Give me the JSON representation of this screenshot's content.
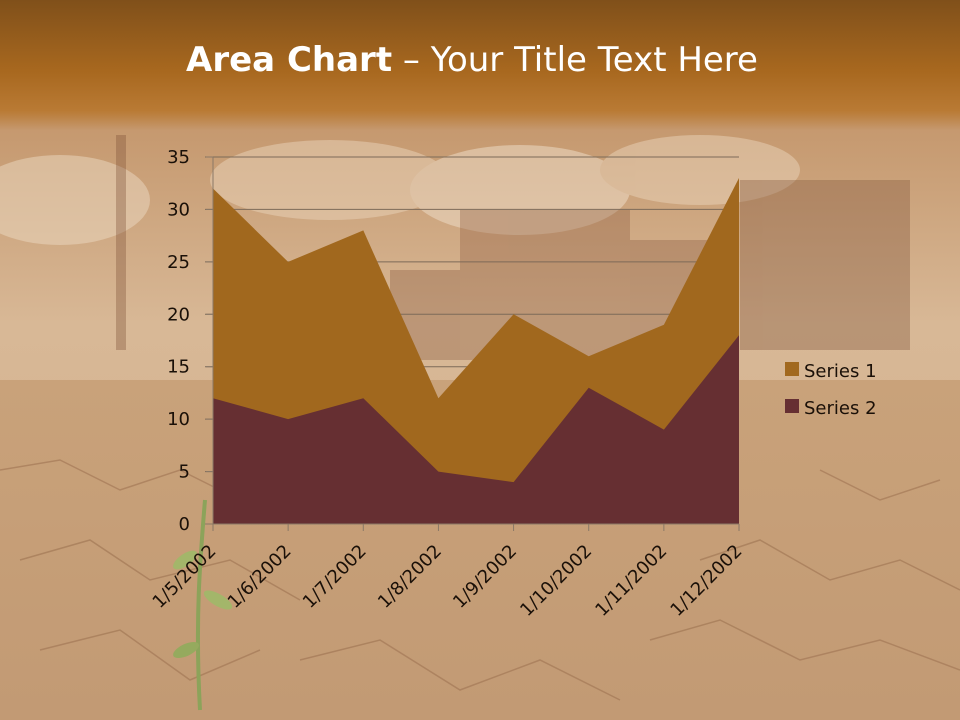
{
  "slide": {
    "title_bold": "Area Chart",
    "title_rest": " – Your Title Text Here"
  },
  "colors": {
    "series_1": "#a1681e",
    "series_2": "#662f32",
    "title_bar": "#a8681f",
    "background": "#c9a783"
  },
  "chart_data": {
    "type": "area",
    "title": "",
    "xlabel": "",
    "ylabel": "",
    "categories": [
      "1/5/2002",
      "1/6/2002",
      "1/7/2002",
      "1/8/2002",
      "1/9/2002",
      "1/10/2002",
      "1/11/2002",
      "1/12/2002"
    ],
    "series": [
      {
        "name": "Series 1",
        "values": [
          32,
          25,
          28,
          12,
          20,
          16,
          19,
          33
        ]
      },
      {
        "name": "Series 2",
        "values": [
          12,
          10,
          12,
          5,
          4,
          13,
          9,
          18
        ]
      }
    ],
    "ylim": [
      0,
      35
    ],
    "yticks": [
      0,
      5,
      10,
      15,
      20,
      25,
      30,
      35
    ],
    "grid": true,
    "legend_position": "right"
  }
}
